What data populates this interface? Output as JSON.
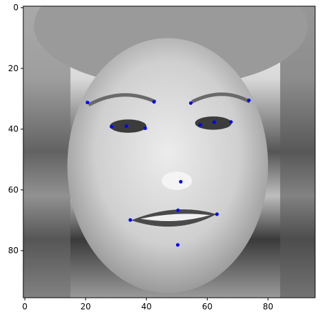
{
  "chart_data": {
    "type": "scatter",
    "title": "",
    "xlabel": "",
    "ylabel": "",
    "xlim": [
      -0.5,
      95.5
    ],
    "ylim": [
      95.5,
      -0.5
    ],
    "y_inverted": true,
    "grid": false,
    "legend": "none",
    "background_image": "grayscale face photograph (96x96 pixels)",
    "x_ticks": [
      0,
      20,
      40,
      60,
      80
    ],
    "y_ticks": [
      0,
      20,
      40,
      60,
      80
    ],
    "marker_color": "#0000ff",
    "series": [
      {
        "x": [
          28.5,
          20.6,
          33.4,
          39.6,
          42.5,
          54.6,
          62.3,
          57.7,
          67.8,
          73.7,
          51.3,
          50.4,
          34.7,
          63.2,
          50.3
        ],
        "y": [
          39.2,
          31.2,
          39.0,
          39.7,
          31.0,
          31.4,
          37.7,
          38.6,
          37.6,
          30.5,
          57.3,
          66.7,
          69.9,
          68.0,
          78.1
        ]
      }
    ]
  }
}
